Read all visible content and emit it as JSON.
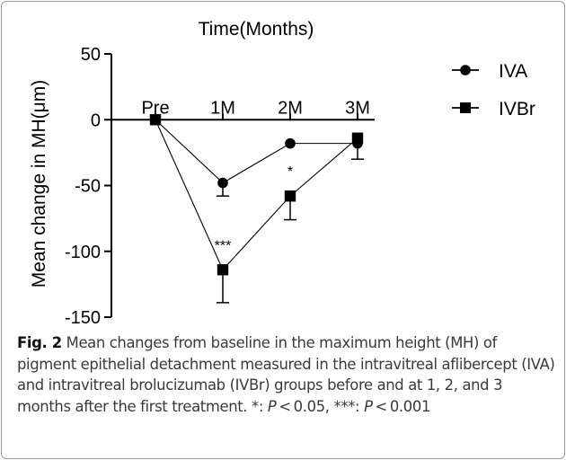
{
  "chart_data": {
    "type": "line",
    "title": "Time(Months)",
    "xlabel": "",
    "ylabel": "Mean change in MH(μm)",
    "categories": [
      "Pre",
      "1M",
      "2M",
      "3M"
    ],
    "ylim": [
      -150,
      50
    ],
    "yticks": [
      "50",
      "0",
      "-50",
      "-100",
      "-150"
    ],
    "grid": false,
    "legend_position": "top-right",
    "series": [
      {
        "name": "IVA",
        "marker": "circle",
        "values": [
          0,
          -48,
          -18,
          -18
        ],
        "errors": [
          0,
          10,
          0,
          0
        ],
        "annotations": [
          "",
          "",
          "",
          ""
        ]
      },
      {
        "name": "IVBr",
        "marker": "square",
        "values": [
          0,
          -114,
          -58,
          -14
        ],
        "errors": [
          0,
          25,
          18,
          16
        ],
        "annotations": [
          "",
          "***",
          "*",
          ""
        ]
      }
    ]
  },
  "caption": {
    "fig_label": "Fig. 2",
    "text_1": "  Mean changes from baseline in the maximum height (MH) of pigment epithelial detachment measured in the intravitreal aflibercept (IVA) and intravitreal brolucizumab (IVBr) groups before and at 1, 2, and 3 months after the first treatment. *: ",
    "p1": "P",
    "text_2": " < 0.05, ***: ",
    "p2": "P",
    "text_3": " < 0.001"
  }
}
